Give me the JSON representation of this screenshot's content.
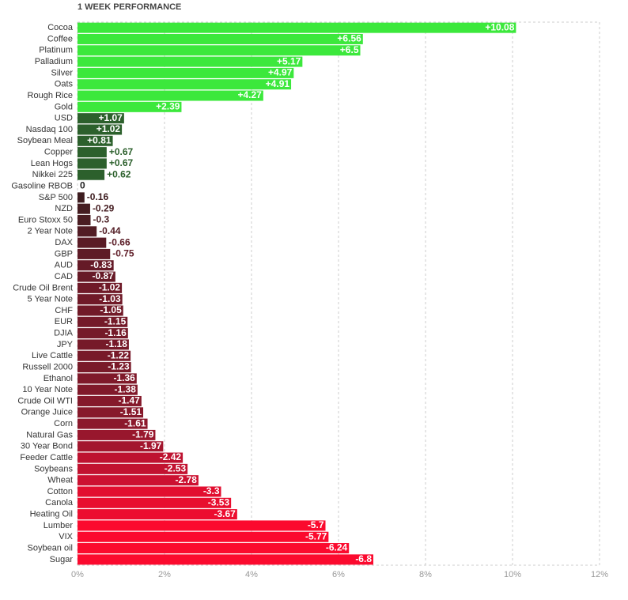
{
  "chart_data": {
    "type": "hbar",
    "title": "1 WEEK PERFORMANCE",
    "categories": [
      "Cocoa",
      "Coffee",
      "Platinum",
      "Palladium",
      "Silver",
      "Oats",
      "Rough Rice",
      "Gold",
      "USD",
      "Nasdaq 100",
      "Soybean Meal",
      "Copper",
      "Lean Hogs",
      "Nikkei 225",
      "Gasoline RBOB",
      "S&P 500",
      "NZD",
      "Euro Stoxx 50",
      "2 Year Note",
      "DAX",
      "GBP",
      "AUD",
      "CAD",
      "Crude Oil Brent",
      "5 Year Note",
      "CHF",
      "EUR",
      "DJIA",
      "JPY",
      "Live Cattle",
      "Russell 2000",
      "Ethanol",
      "10 Year Note",
      "Crude Oil WTI",
      "Orange Juice",
      "Corn",
      "Natural Gas",
      "30 Year Bond",
      "Feeder Cattle",
      "Soybeans",
      "Wheat",
      "Cotton",
      "Canola",
      "Heating Oil",
      "Lumber",
      "VIX",
      "Soybean oil",
      "Sugar"
    ],
    "values": [
      10.08,
      6.56,
      6.5,
      5.17,
      4.97,
      4.91,
      4.27,
      2.39,
      1.07,
      1.02,
      0.81,
      0.67,
      0.67,
      0.62,
      0,
      -0.16,
      -0.29,
      -0.3,
      -0.44,
      -0.66,
      -0.75,
      -0.83,
      -0.87,
      -1.02,
      -1.03,
      -1.05,
      -1.15,
      -1.16,
      -1.18,
      -1.22,
      -1.23,
      -1.36,
      -1.38,
      -1.47,
      -1.51,
      -1.61,
      -1.79,
      -1.97,
      -2.42,
      -2.53,
      -2.78,
      -3.3,
      -3.53,
      -3.67,
      -5.7,
      -5.77,
      -6.24,
      -6.8
    ],
    "value_labels": [
      "+10.08",
      "+6.56",
      "+6.5",
      "+5.17",
      "+4.97",
      "+4.91",
      "+4.27",
      "+2.39",
      "+1.07",
      "+1.02",
      "+0.81",
      "+0.67",
      "+0.67",
      "+0.62",
      "0",
      "-0.16",
      "-0.29",
      "-0.3",
      "-0.44",
      "-0.66",
      "-0.75",
      "-0.83",
      "-0.87",
      "-1.02",
      "-1.03",
      "-1.05",
      "-1.15",
      "-1.16",
      "-1.18",
      "-1.22",
      "-1.23",
      "-1.36",
      "-1.38",
      "-1.47",
      "-1.51",
      "-1.61",
      "-1.79",
      "-1.97",
      "-2.42",
      "-2.53",
      "-2.78",
      "-3.3",
      "-3.53",
      "-3.67",
      "-5.7",
      "-5.77",
      "-6.24",
      "-6.8"
    ],
    "colors": [
      "#3ce83c",
      "#3ce83c",
      "#3ce83c",
      "#3ce83c",
      "#3ce83c",
      "#3ce83c",
      "#3ce83c",
      "#3ce83c",
      "#2c602c",
      "#2c602c",
      "#2c602c",
      "#2c602c",
      "#2c602c",
      "#2c602c",
      "#222222",
      "#3d1c1f",
      "#451d21",
      "#4a1d22",
      "#521c24",
      "#5a1b25",
      "#5e1b26",
      "#651a27",
      "#671a27",
      "#6f1a28",
      "#701a28",
      "#711a28",
      "#741a29",
      "#751a29",
      "#761a29",
      "#781a29",
      "#791a29",
      "#7f192a",
      "#80192a",
      "#85192b",
      "#87192b",
      "#8c182c",
      "#98172d",
      "#a3162e",
      "#be1230",
      "#c21230",
      "#cc1131",
      "#e20e2f",
      "#e80e2f",
      "#ec0d2f",
      "#fb0a2e",
      "#fb0a2e",
      "#fb0a2e",
      "#fb0a2e"
    ],
    "xlim": [
      0,
      12
    ],
    "xticks": [
      {
        "value": 0,
        "label": "0%"
      },
      {
        "value": 2,
        "label": "2%"
      },
      {
        "value": 4,
        "label": "4%"
      },
      {
        "value": 6,
        "label": "6%"
      },
      {
        "value": 8,
        "label": "8%"
      },
      {
        "value": 10,
        "label": "10%"
      },
      {
        "value": 12,
        "label": "12%"
      }
    ],
    "grid": true
  }
}
